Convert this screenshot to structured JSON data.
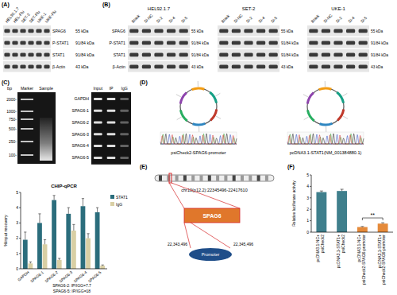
{
  "panel_labels": [
    "(A)",
    "(B)",
    "(C)",
    "(D)",
    "(E)",
    "(F)"
  ],
  "blot_a": {
    "lanes": [
      "HEL92.1.7",
      "HEL-Flu",
      "SET-2",
      "SET-Flu",
      "UKE-1",
      "UKE-Flu"
    ],
    "rows": [
      "SPAG6",
      "P-STAT1",
      "STAT1",
      "β-Actin"
    ],
    "sizes": [
      "55 kDa",
      "91/84 kDa",
      "91/84 kDa",
      "43 kDa"
    ]
  },
  "blot_b": {
    "groups": [
      "HEL92.1.7",
      "SET-2",
      "UKE-1"
    ],
    "lanes": [
      "Blank",
      "Si-NC",
      "Si-2",
      "Si-4",
      "Si-5"
    ],
    "rows": [
      "SPAG6",
      "P-STAT1",
      "STAT1",
      "β-Actin"
    ],
    "sizes": [
      "55 kDa",
      "91/84 kDa",
      "91/84 kDa",
      "43 kDa"
    ]
  },
  "gel": {
    "unit": "bp",
    "columns": [
      "Marker",
      "Sample"
    ],
    "ladder": [
      "2000-",
      "1000-",
      "750-",
      "500-",
      "250-",
      "100-"
    ]
  },
  "chip_gel": {
    "columns": [
      "Input",
      "IP",
      "IgG"
    ],
    "rows": [
      "GAPDH",
      "SPAG6-1",
      "SPAG6-2",
      "SPAG6-3",
      "SPAG6-4",
      "SPAG6-5"
    ]
  },
  "plasmids": [
    "psiCheck2-SPAG6-promoter",
    "pcDNA3.1-STAT1(NM_001384880.1)"
  ],
  "locus": {
    "region": "chr10(p12.2):22345496-22417610",
    "gene": "SPAG6",
    "promoter": "Promoter",
    "start": "22,343,496",
    "end": "22,345,496"
  },
  "chart_data": [
    {
      "type": "bar",
      "title": "CHIP-qPCR",
      "y_label": "%Input recovery",
      "categories": [
        "GAPDH",
        "SPAG6-1",
        "SPAG6-2",
        "SPAG6-3",
        "SPAG6-4",
        "SPAG6-5"
      ],
      "series": [
        {
          "name": "STAT1",
          "color": "#2b6d7c",
          "values": [
            1.9,
            3.0,
            4.5,
            3.6,
            4.1,
            3.7
          ],
          "errors": [
            0.5,
            0.6,
            0.3,
            0.4,
            0.5,
            0.3
          ]
        },
        {
          "name": "IgG",
          "color": "#d9cfa4",
          "values": [
            0.35,
            1.6,
            0.58,
            2.5,
            2.0,
            0.2
          ],
          "errors": [
            0.1,
            0.3,
            0.1,
            0.4,
            0.3,
            0.05
          ]
        }
      ],
      "ylim": [
        0,
        5
      ],
      "yticks": [
        0,
        1,
        2,
        3,
        4,
        5
      ],
      "legend": "upper right",
      "annotations": [
        "SPAG6-2: IP/IGG=7.7",
        "SPAG6-5: IP/IGG=18"
      ]
    },
    {
      "type": "bar",
      "y_label": "Relative luciferase activity",
      "categories": [
        "pcDNA3.1-NC+psiCheck2",
        "pcDNA3.1-STAT1+psiCheck2",
        "pcDNA3.1-NC+psiCheck2-SPAG6-promoter",
        "pcDNA3.1-STAT1+psiCheck2-SPAG6-promoter"
      ],
      "values": [
        3.5,
        3.6,
        0.45,
        0.75
      ],
      "errors": [
        0.1,
        0.15,
        0.05,
        0.08
      ],
      "colors": [
        "#3f7f8c",
        "#3f7f8c",
        "#e58a3a",
        "#e58a3a"
      ],
      "ylim": [
        0,
        5
      ],
      "yticks": [
        0,
        1,
        2,
        3,
        4,
        5
      ],
      "annotations": [
        "**"
      ]
    }
  ]
}
